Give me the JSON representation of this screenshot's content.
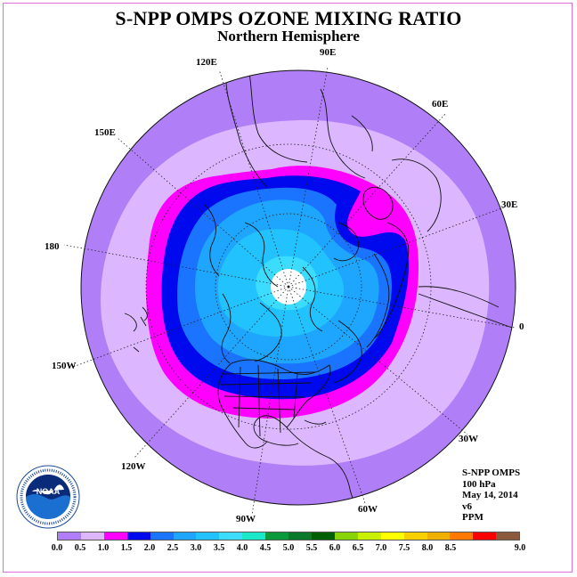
{
  "header": {
    "title": "S-NPP OMPS OZONE MIXING RATIO",
    "subtitle": "Northern Hemisphere"
  },
  "map": {
    "projection": "north-polar-stereographic",
    "longitude_labels": [
      {
        "text": "90E"
      },
      {
        "text": "60E"
      },
      {
        "text": "30E"
      },
      {
        "text": "0"
      },
      {
        "text": "30W"
      },
      {
        "text": "60W"
      },
      {
        "text": "90W"
      },
      {
        "text": "120W"
      },
      {
        "text": "150W"
      },
      {
        "text": "180"
      },
      {
        "text": "150E"
      },
      {
        "text": "120E"
      }
    ],
    "colors": {
      "outer_ring": "#b07ef6",
      "band_light": "#dcb6ff",
      "band_magenta": "#ff00ff",
      "band_dark_blue": "#0008ee",
      "band_blue": "#1a74ff",
      "band_sky": "#1ea6ff",
      "band_light_sky": "#22c2ff",
      "band_cyan": "#3cdcff",
      "polar_gap": "#ffffff"
    }
  },
  "info": {
    "instrument": "S-NPP OMPS",
    "level": "100 hPa",
    "date": "May 14, 2014",
    "version": "v6",
    "units": "PPM"
  },
  "logo": {
    "name": "noaa-logo",
    "text": "NOAA"
  },
  "colorbar": {
    "colors": [
      "#b07ef6",
      "#dcb6ff",
      "#ff00ff",
      "#0008ee",
      "#1a74ff",
      "#1ea6ff",
      "#22c2ff",
      "#3cdcff",
      "#1ae8c8",
      "#0a9a3c",
      "#0a7a2a",
      "#006000",
      "#88d40a",
      "#c8f000",
      "#ffff00",
      "#f8d000",
      "#f0b000",
      "#ff7800",
      "#ff0000",
      "#8b5a3c"
    ],
    "ticks": [
      "0.0",
      "0.5",
      "1.0",
      "1.5",
      "2.0",
      "2.5",
      "3.0",
      "3.5",
      "4.0",
      "4.5",
      "5.0",
      "5.5",
      "6.0",
      "6.5",
      "7.0",
      "7.5",
      "8.0",
      "8.5",
      "9.0"
    ]
  }
}
